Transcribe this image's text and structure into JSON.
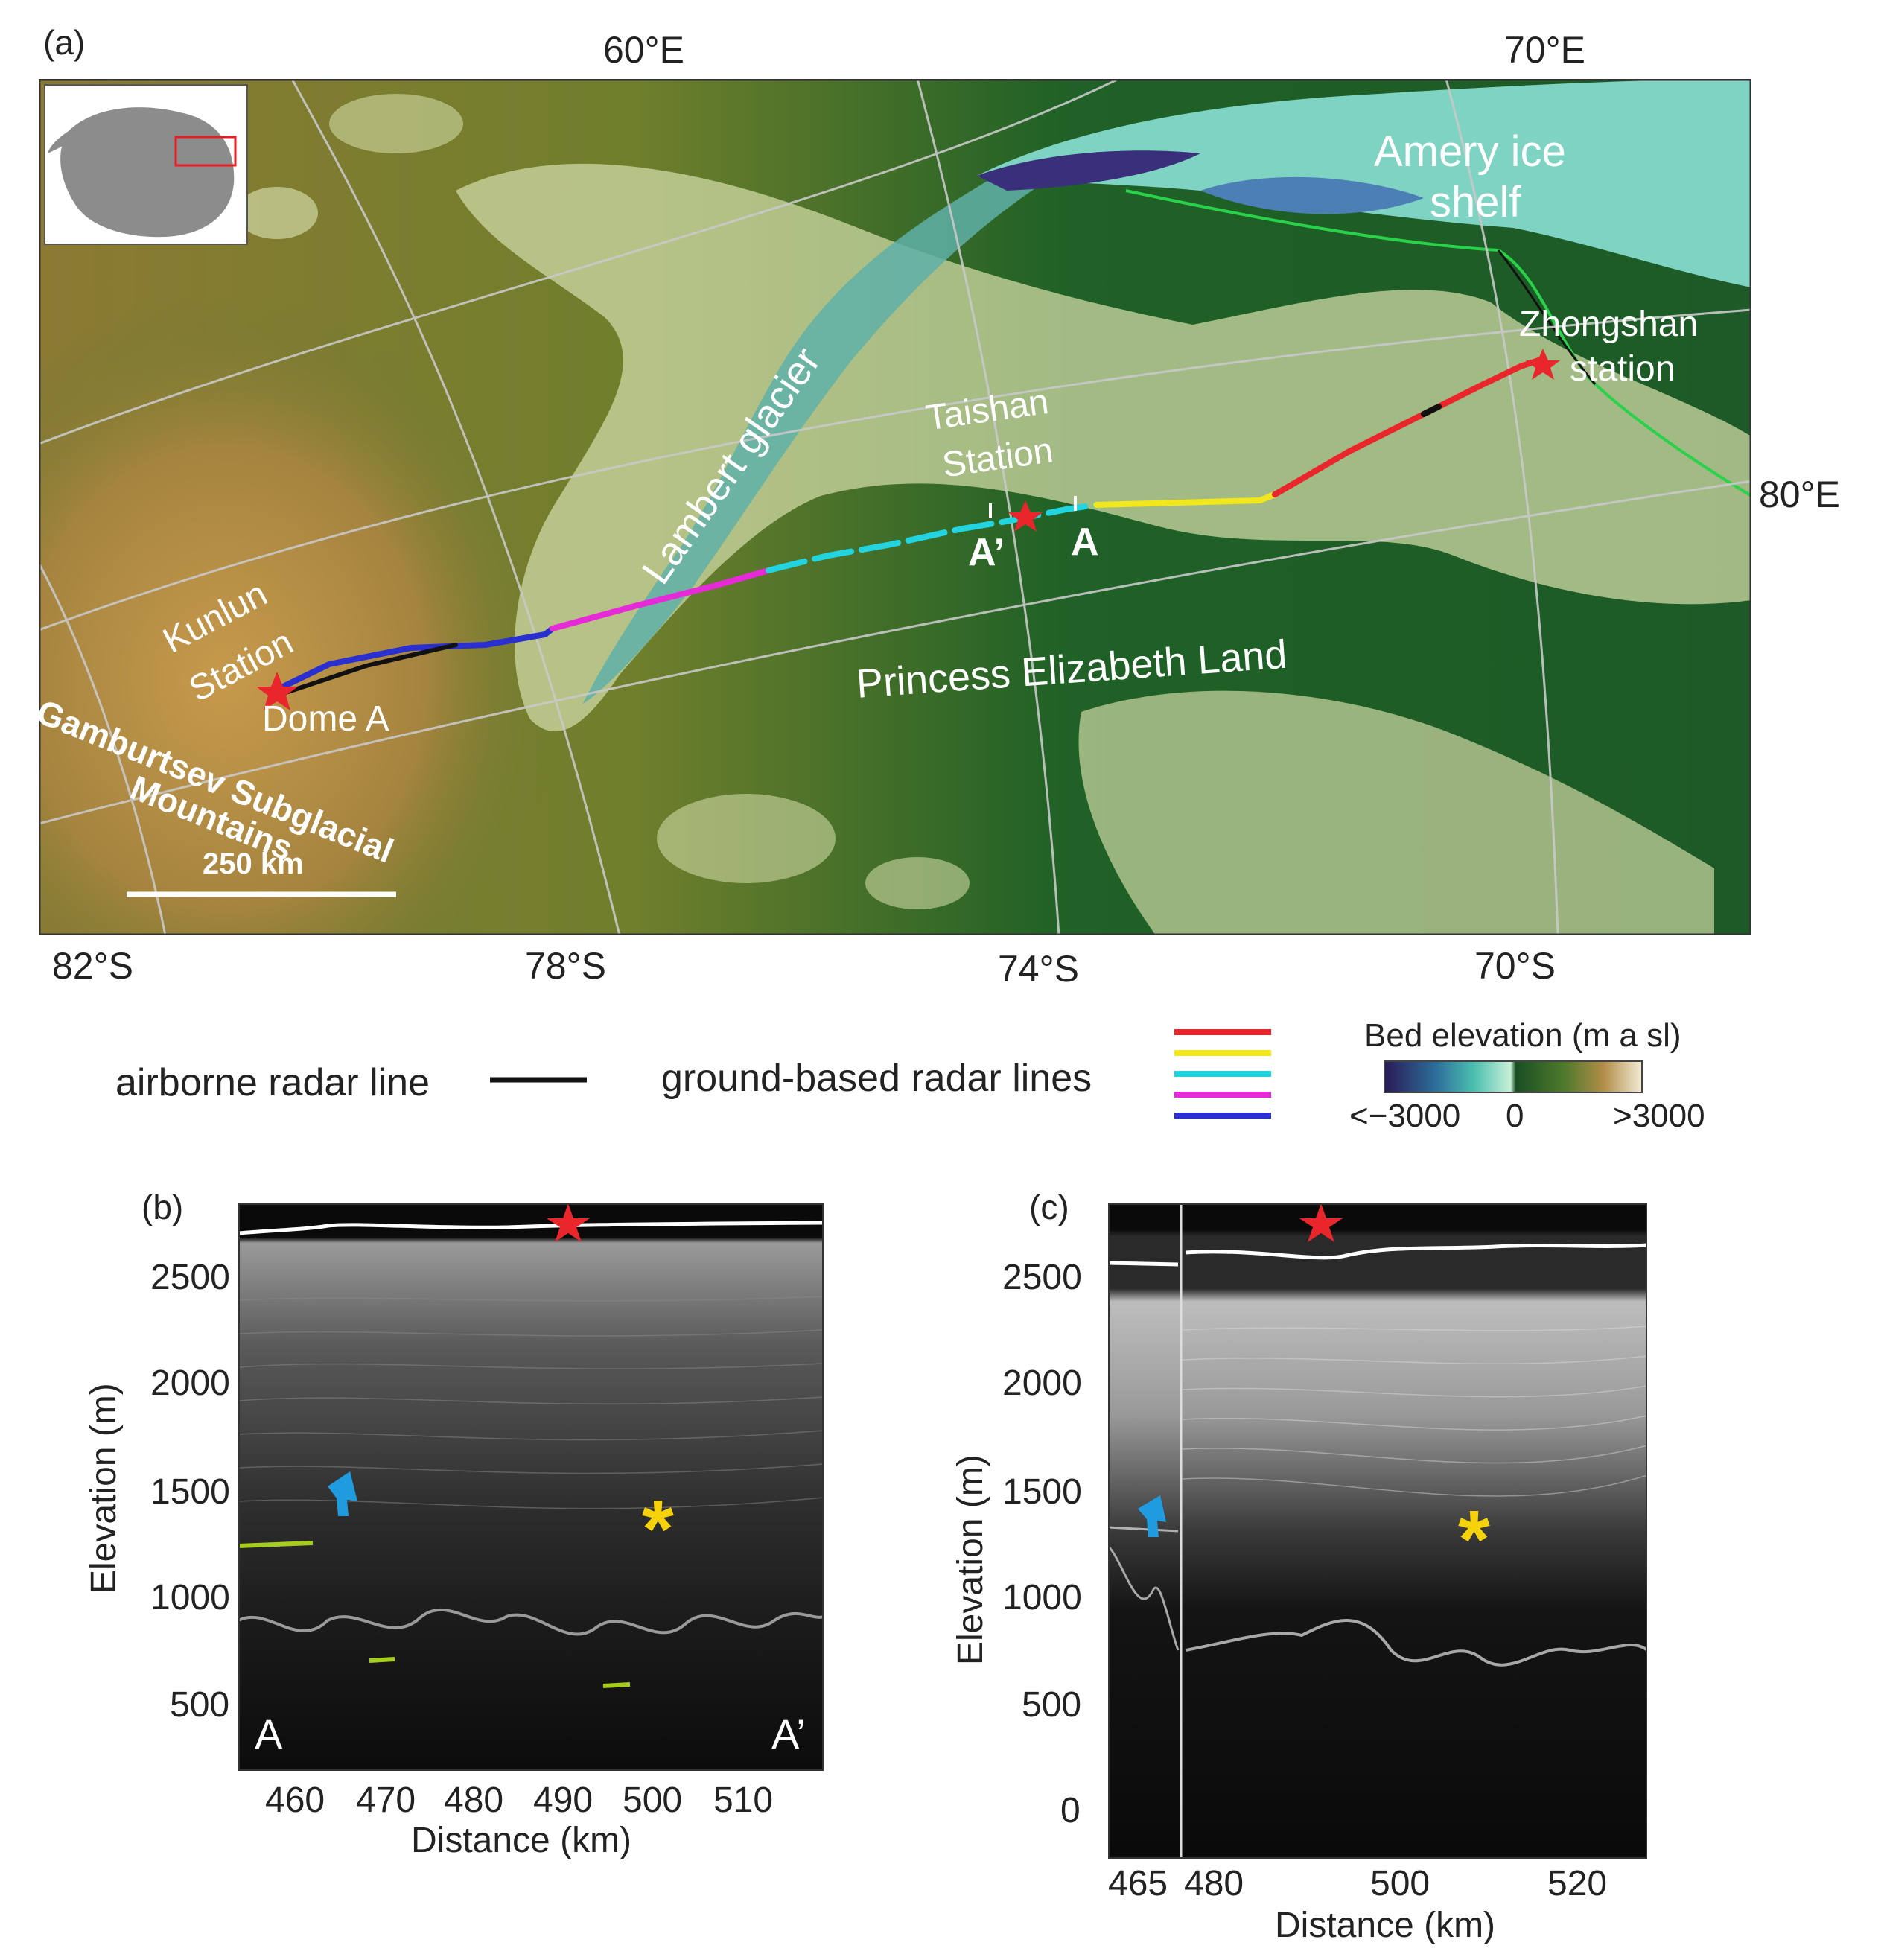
{
  "panel_a": {
    "label": "(a)",
    "top_lon_labels": [
      "60°E",
      "70°E"
    ],
    "right_lon_label": "80°E",
    "bottom_lat_labels": [
      "82°S",
      "78°S",
      "74°S",
      "70°S"
    ],
    "places": {
      "amery": "Amery ice",
      "amery2": "shelf",
      "zhongshan": "Zhongshan",
      "zhongshan2": "station",
      "taishan": "Taishan",
      "taishan2": "Station",
      "lambert": "Lambert glacier",
      "kunlun": "Kunlun",
      "kunlun2": "Station",
      "dome": "Dome A",
      "gamburtsev": "Gamburtsev Subglacial",
      "gamburtsev2": "Mountains",
      "pel": "Princess Elizabeth Land",
      "a_mark": "A",
      "a_prime_mark": "A’"
    },
    "scale_bar": "250 km",
    "route_colors": {
      "red": "#e8262b",
      "yellow": "#f2e61c",
      "cyan": "#22d4e0",
      "magenta": "#e62ad8",
      "blue": "#2a2fd0",
      "black": "#111111"
    }
  },
  "legend": {
    "airborne": "airborne radar line",
    "ground": "ground-based radar lines",
    "colorbar_title": "Bed elevation (m a sl)",
    "colorbar_min": "<−3000",
    "colorbar_mid": "0",
    "colorbar_max": ">3000",
    "ground_line_colors": [
      "#e8262b",
      "#f2e61c",
      "#22d4e0",
      "#e62ad8",
      "#2a2fd0"
    ]
  },
  "panel_b": {
    "label": "(b)",
    "ylabel": "Elevation (m)",
    "xlabel": "Distance (km)",
    "yticks": [
      "2500",
      "2000",
      "1500",
      "1000",
      "500"
    ],
    "xticks": [
      "460",
      "470",
      "480",
      "490",
      "500",
      "510"
    ],
    "left_marker": "A",
    "right_marker": "A’",
    "asterisk": "*"
  },
  "panel_c": {
    "label": "(c)",
    "ylabel": "Elevation (m)",
    "xlabel": "Distance (km)",
    "yticks": [
      "2500",
      "2000",
      "1500",
      "1000",
      "500",
      "0"
    ],
    "xticks": [
      "465",
      "480",
      "500",
      "520"
    ],
    "asterisk": "*"
  }
}
